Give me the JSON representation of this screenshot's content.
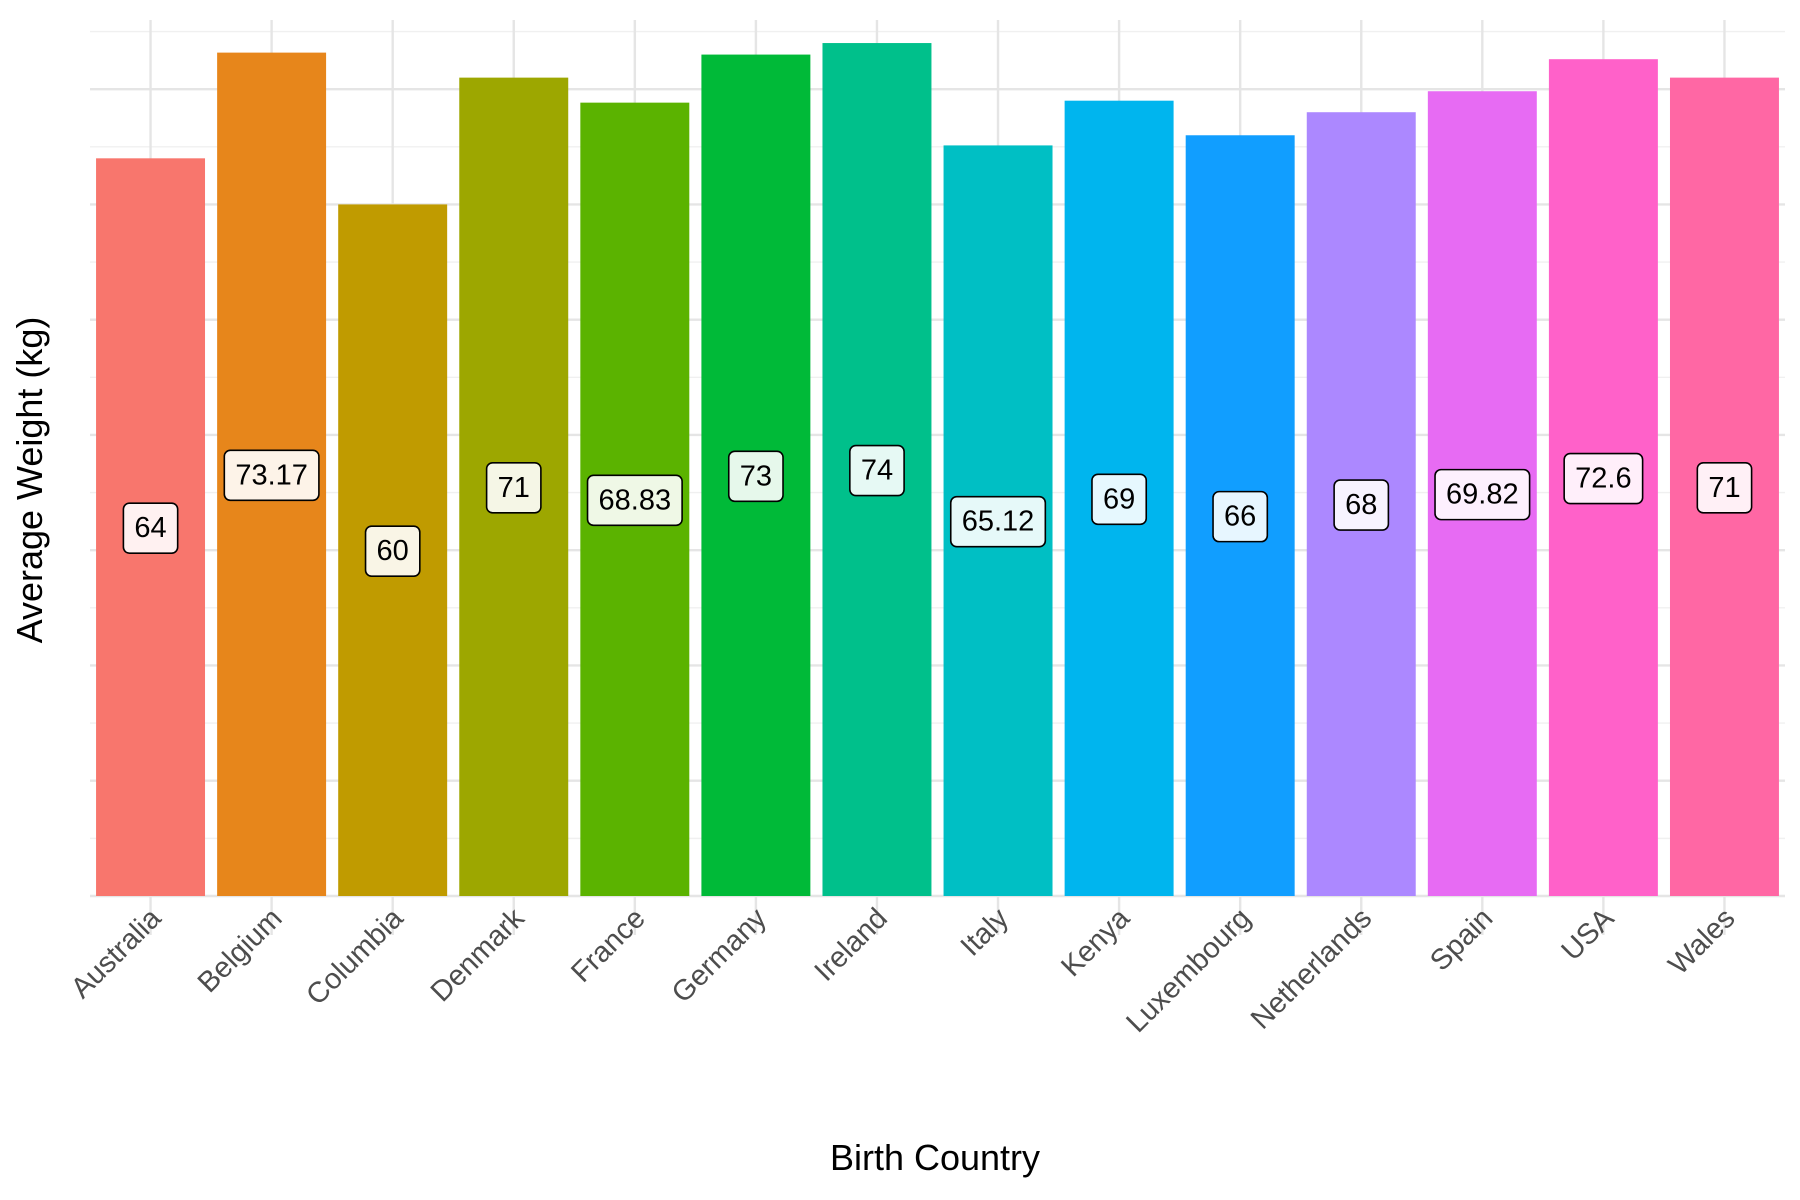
{
  "chart_data": {
    "type": "bar",
    "title": "",
    "xlabel": "Birth Country",
    "ylabel": "Average Weight (kg)",
    "categories": [
      "Australia",
      "Belgium",
      "Columbia",
      "Denmark",
      "France",
      "Germany",
      "Ireland",
      "Italy",
      "Kenya",
      "Luxembourg",
      "Netherlands",
      "Spain",
      "USA",
      "Wales"
    ],
    "values": [
      64,
      73.17,
      60,
      71,
      68.83,
      73,
      74,
      65.12,
      69,
      66,
      68,
      69.82,
      72.6,
      71
    ],
    "data_labels": [
      "64",
      "73.17",
      "60",
      "71",
      "68.83",
      "73",
      "74",
      "65.12",
      "69",
      "66",
      "68",
      "69.82",
      "72.6",
      "71"
    ],
    "colors": [
      "#F8766D",
      "#E7861B",
      "#C09B00",
      "#9DA700",
      "#5BB300",
      "#00BA38",
      "#00C08B",
      "#00BFC4",
      "#00B5EE",
      "#119EFF",
      "#AC88FF",
      "#E76BF3",
      "#FF61C9",
      "#FF67A4"
    ],
    "ylim": [
      0,
      76
    ],
    "y_tick_labels_shown": false,
    "grid": true,
    "legend": "none"
  }
}
